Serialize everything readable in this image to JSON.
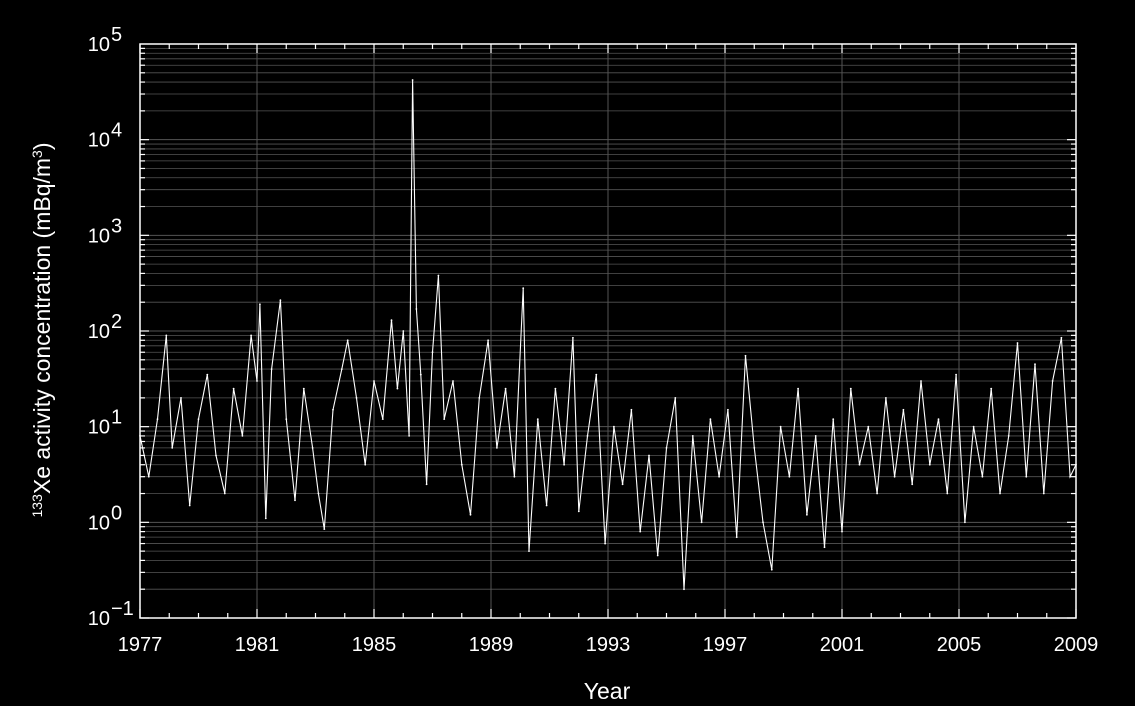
{
  "chart_data": {
    "type": "line",
    "title": "",
    "xlabel": "Year",
    "ylabel": {
      "isotope_prefix": "133",
      "text": "Xe activity concentration (mBq/m",
      "unit_exponent": "3",
      "closing": ")"
    },
    "x_scale": "linear",
    "y_scale": "log",
    "xlim": [
      1977,
      2009
    ],
    "ylim": [
      0.1,
      100000
    ],
    "grid": true,
    "colors": {
      "background": "#000000",
      "line": "#ffffff",
      "grid": "#555555",
      "axis": "#ffffff"
    },
    "x_ticks": [
      {
        "value": 1977,
        "label": "1977"
      },
      {
        "value": 1981,
        "label": "1981"
      },
      {
        "value": 1985,
        "label": "1985"
      },
      {
        "value": 1989,
        "label": "1989"
      },
      {
        "value": 1993,
        "label": "1993"
      },
      {
        "value": 1997,
        "label": "1997"
      },
      {
        "value": 2001,
        "label": "2001"
      },
      {
        "value": 2005,
        "label": "2005"
      },
      {
        "value": 2009,
        "label": "2009"
      }
    ],
    "y_ticks": [
      {
        "value": 0.1,
        "base": "10",
        "exp": "−1"
      },
      {
        "value": 1,
        "base": "10",
        "exp": "0"
      },
      {
        "value": 10,
        "base": "10",
        "exp": "1"
      },
      {
        "value": 100,
        "base": "10",
        "exp": "2"
      },
      {
        "value": 1000,
        "base": "10",
        "exp": "3"
      },
      {
        "value": 10000,
        "base": "10",
        "exp": "4"
      },
      {
        "value": 100000,
        "base": "10",
        "exp": "5"
      }
    ],
    "series": [
      {
        "values": [
          [
            1977.0,
            8
          ],
          [
            1977.3,
            3
          ],
          [
            1977.6,
            12
          ],
          [
            1977.9,
            90
          ],
          [
            1978.1,
            6
          ],
          [
            1978.4,
            20
          ],
          [
            1978.7,
            1.5
          ],
          [
            1979.0,
            12
          ],
          [
            1979.3,
            35
          ],
          [
            1979.6,
            5
          ],
          [
            1979.9,
            2
          ],
          [
            1980.2,
            25
          ],
          [
            1980.5,
            8
          ],
          [
            1980.8,
            90
          ],
          [
            1981.0,
            30
          ],
          [
            1981.1,
            190
          ],
          [
            1981.3,
            1.1
          ],
          [
            1981.5,
            40
          ],
          [
            1981.8,
            210
          ],
          [
            1982.0,
            12
          ],
          [
            1982.3,
            1.7
          ],
          [
            1982.6,
            25
          ],
          [
            1982.9,
            6
          ],
          [
            1983.1,
            2
          ],
          [
            1983.3,
            0.85
          ],
          [
            1983.6,
            15
          ],
          [
            1983.9,
            40
          ],
          [
            1984.1,
            80
          ],
          [
            1984.4,
            20
          ],
          [
            1984.7,
            4
          ],
          [
            1985.0,
            30
          ],
          [
            1985.3,
            12
          ],
          [
            1985.6,
            130
          ],
          [
            1985.8,
            25
          ],
          [
            1986.0,
            100
          ],
          [
            1986.2,
            8
          ],
          [
            1986.32,
            42000
          ],
          [
            1986.45,
            170
          ],
          [
            1986.6,
            35
          ],
          [
            1986.8,
            2.5
          ],
          [
            1987.0,
            60
          ],
          [
            1987.2,
            380
          ],
          [
            1987.4,
            12
          ],
          [
            1987.7,
            30
          ],
          [
            1988.0,
            4
          ],
          [
            1988.3,
            1.2
          ],
          [
            1988.6,
            20
          ],
          [
            1988.9,
            80
          ],
          [
            1989.2,
            6
          ],
          [
            1989.5,
            25
          ],
          [
            1989.8,
            3
          ],
          [
            1990.1,
            280
          ],
          [
            1990.3,
            0.5
          ],
          [
            1990.6,
            12
          ],
          [
            1990.9,
            1.5
          ],
          [
            1991.2,
            25
          ],
          [
            1991.5,
            4
          ],
          [
            1991.8,
            85
          ],
          [
            1992.0,
            1.3
          ],
          [
            1992.3,
            8
          ],
          [
            1992.6,
            35
          ],
          [
            1992.9,
            0.6
          ],
          [
            1993.2,
            10
          ],
          [
            1993.5,
            2.5
          ],
          [
            1993.8,
            15
          ],
          [
            1994.1,
            0.8
          ],
          [
            1994.4,
            5
          ],
          [
            1994.7,
            0.45
          ],
          [
            1995.0,
            6
          ],
          [
            1995.3,
            20
          ],
          [
            1995.6,
            0.2
          ],
          [
            1995.9,
            8
          ],
          [
            1996.2,
            1
          ],
          [
            1996.5,
            12
          ],
          [
            1996.8,
            3
          ],
          [
            1997.1,
            15
          ],
          [
            1997.4,
            0.7
          ],
          [
            1997.7,
            55
          ],
          [
            1998.0,
            6
          ],
          [
            1998.3,
            1
          ],
          [
            1998.6,
            0.32
          ],
          [
            1998.9,
            10
          ],
          [
            1999.2,
            3
          ],
          [
            1999.5,
            25
          ],
          [
            1999.8,
            1.2
          ],
          [
            2000.1,
            8
          ],
          [
            2000.4,
            0.55
          ],
          [
            2000.7,
            12
          ],
          [
            2001.0,
            0.8
          ],
          [
            2001.3,
            25
          ],
          [
            2001.6,
            4
          ],
          [
            2001.9,
            10
          ],
          [
            2002.2,
            2
          ],
          [
            2002.5,
            20
          ],
          [
            2002.8,
            3
          ],
          [
            2003.1,
            15
          ],
          [
            2003.4,
            2.5
          ],
          [
            2003.7,
            30
          ],
          [
            2004.0,
            4
          ],
          [
            2004.3,
            12
          ],
          [
            2004.6,
            2
          ],
          [
            2004.9,
            35
          ],
          [
            2005.2,
            1
          ],
          [
            2005.5,
            10
          ],
          [
            2005.8,
            3
          ],
          [
            2006.1,
            25
          ],
          [
            2006.4,
            2
          ],
          [
            2006.7,
            8
          ],
          [
            2007.0,
            75
          ],
          [
            2007.3,
            3
          ],
          [
            2007.6,
            45
          ],
          [
            2007.9,
            2
          ],
          [
            2008.2,
            30
          ],
          [
            2008.5,
            85
          ],
          [
            2008.8,
            3
          ],
          [
            2009.0,
            4
          ]
        ]
      }
    ]
  }
}
